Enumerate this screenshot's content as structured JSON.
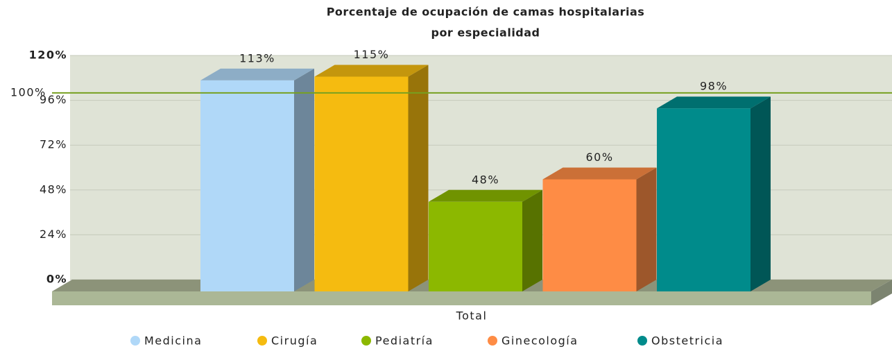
{
  "chart_data": {
    "type": "bar3d",
    "title": [
      "Porcentaje de ocupación de camas hospitalarias",
      "por especialidad"
    ],
    "categories": [
      "Total"
    ],
    "xlabel": "Total",
    "series": [
      {
        "name": "Medicina",
        "color": "#b0d8f8",
        "values": [
          113
        ],
        "value_labels": [
          "113%"
        ]
      },
      {
        "name": "Cirugía",
        "color": "#f5bb10",
        "values": [
          115
        ],
        "value_labels": [
          "115%"
        ]
      },
      {
        "name": "Pediatría",
        "color": "#8cb800",
        "values": [
          48
        ],
        "value_labels": [
          "48%"
        ]
      },
      {
        "name": "Ginecología",
        "color": "#fe8c45",
        "values": [
          60
        ],
        "value_labels": [
          "60%"
        ]
      },
      {
        "name": "Obstetricia",
        "color": "#008b8b",
        "values": [
          98
        ],
        "value_labels": [
          "98%"
        ]
      }
    ],
    "ylim": [
      0,
      120
    ],
    "yticks": [
      {
        "value": 0,
        "label": "0%"
      },
      {
        "value": 24,
        "label": "24%"
      },
      {
        "value": 48,
        "label": "48%"
      },
      {
        "value": 72,
        "label": "72%"
      },
      {
        "value": 96,
        "label": "96%"
      },
      {
        "value": 120,
        "label": "120%"
      }
    ],
    "trend_line": {
      "value": 100,
      "label": "100%",
      "color": "#77a020"
    },
    "grid": true,
    "legend": "bottom"
  }
}
